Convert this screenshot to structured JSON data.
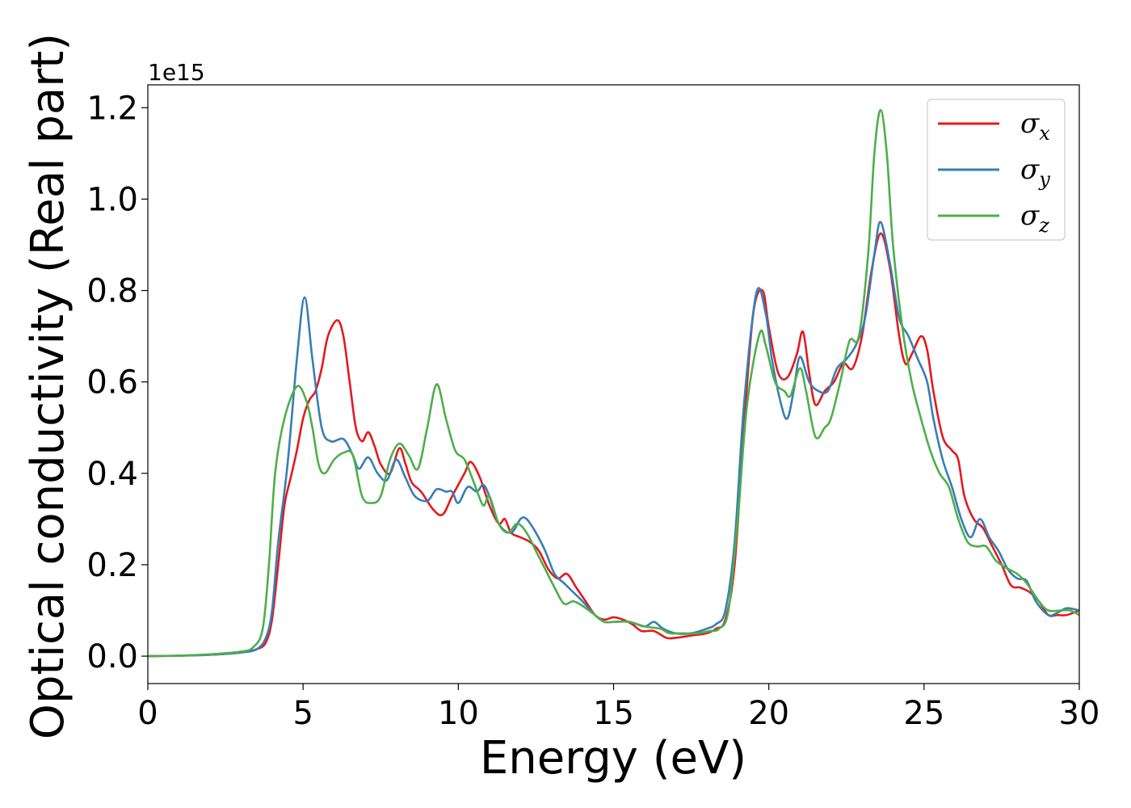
{
  "chart_data": {
    "type": "line",
    "xlabel": "Energy (eV)",
    "ylabel": "Optical conductivity (Real part)",
    "y_offset_text": "1e15",
    "xlim": [
      0,
      30
    ],
    "ylim": [
      -0.06,
      1.25
    ],
    "x_ticks": [
      0,
      5,
      10,
      15,
      20,
      25,
      30
    ],
    "x_tick_labels": [
      "0",
      "5",
      "10",
      "15",
      "20",
      "25",
      "30"
    ],
    "y_ticks": [
      0.0,
      0.2,
      0.4,
      0.6,
      0.8,
      1.0,
      1.2
    ],
    "y_tick_labels": [
      "0.0",
      "0.2",
      "0.4",
      "0.6",
      "0.8",
      "1.0",
      "1.2"
    ],
    "grid": false,
    "legend_position": "top-right",
    "series": [
      {
        "name": "σx",
        "legend_base": "σ",
        "legend_sub": "x",
        "color": "#e41a1c",
        "points": [
          [
            0,
            0
          ],
          [
            1,
            0.001
          ],
          [
            2,
            0.003
          ],
          [
            3,
            0.008
          ],
          [
            3.5,
            0.015
          ],
          [
            3.8,
            0.03
          ],
          [
            4.0,
            0.08
          ],
          [
            4.2,
            0.2
          ],
          [
            4.4,
            0.33
          ],
          [
            4.6,
            0.39
          ],
          [
            4.8,
            0.45
          ],
          [
            5.0,
            0.52
          ],
          [
            5.2,
            0.56
          ],
          [
            5.4,
            0.58
          ],
          [
            5.6,
            0.63
          ],
          [
            5.8,
            0.7
          ],
          [
            6.1,
            0.735
          ],
          [
            6.3,
            0.7
          ],
          [
            6.5,
            0.6
          ],
          [
            6.7,
            0.5
          ],
          [
            6.9,
            0.47
          ],
          [
            7.1,
            0.49
          ],
          [
            7.3,
            0.46
          ],
          [
            7.5,
            0.42
          ],
          [
            7.8,
            0.4
          ],
          [
            8.1,
            0.455
          ],
          [
            8.3,
            0.42
          ],
          [
            8.5,
            0.38
          ],
          [
            8.8,
            0.36
          ],
          [
            9.2,
            0.32
          ],
          [
            9.5,
            0.31
          ],
          [
            9.8,
            0.35
          ],
          [
            10.2,
            0.4
          ],
          [
            10.4,
            0.425
          ],
          [
            10.7,
            0.39
          ],
          [
            11.0,
            0.33
          ],
          [
            11.3,
            0.29
          ],
          [
            11.5,
            0.3
          ],
          [
            11.7,
            0.27
          ],
          [
            12.0,
            0.26
          ],
          [
            12.3,
            0.25
          ],
          [
            12.6,
            0.23
          ],
          [
            12.9,
            0.19
          ],
          [
            13.2,
            0.17
          ],
          [
            13.5,
            0.18
          ],
          [
            13.8,
            0.15
          ],
          [
            14.1,
            0.12
          ],
          [
            14.4,
            0.09
          ],
          [
            14.7,
            0.08
          ],
          [
            15.0,
            0.085
          ],
          [
            15.3,
            0.08
          ],
          [
            15.6,
            0.07
          ],
          [
            15.9,
            0.055
          ],
          [
            16.3,
            0.055
          ],
          [
            16.7,
            0.04
          ],
          [
            17.0,
            0.04
          ],
          [
            17.5,
            0.045
          ],
          [
            18.0,
            0.05
          ],
          [
            18.3,
            0.06
          ],
          [
            18.6,
            0.08
          ],
          [
            18.9,
            0.2
          ],
          [
            19.2,
            0.5
          ],
          [
            19.5,
            0.75
          ],
          [
            19.8,
            0.8
          ],
          [
            20.0,
            0.72
          ],
          [
            20.3,
            0.62
          ],
          [
            20.6,
            0.61
          ],
          [
            20.9,
            0.66
          ],
          [
            21.1,
            0.71
          ],
          [
            21.3,
            0.62
          ],
          [
            21.5,
            0.55
          ],
          [
            21.8,
            0.58
          ],
          [
            22.1,
            0.6
          ],
          [
            22.4,
            0.64
          ],
          [
            22.7,
            0.63
          ],
          [
            23.0,
            0.7
          ],
          [
            23.3,
            0.84
          ],
          [
            23.6,
            0.925
          ],
          [
            23.9,
            0.85
          ],
          [
            24.2,
            0.7
          ],
          [
            24.4,
            0.64
          ],
          [
            24.6,
            0.66
          ],
          [
            24.9,
            0.7
          ],
          [
            25.1,
            0.67
          ],
          [
            25.3,
            0.58
          ],
          [
            25.6,
            0.48
          ],
          [
            25.9,
            0.45
          ],
          [
            26.1,
            0.43
          ],
          [
            26.3,
            0.35
          ],
          [
            26.6,
            0.3
          ],
          [
            26.9,
            0.28
          ],
          [
            27.2,
            0.24
          ],
          [
            27.5,
            0.2
          ],
          [
            27.8,
            0.155
          ],
          [
            28.1,
            0.15
          ],
          [
            28.4,
            0.14
          ],
          [
            28.7,
            0.12
          ],
          [
            29.0,
            0.09
          ],
          [
            29.3,
            0.09
          ],
          [
            29.6,
            0.09
          ],
          [
            30.0,
            0.1
          ]
        ]
      },
      {
        "name": "σy",
        "legend_base": "σ",
        "legend_sub": "y",
        "color": "#377eb8",
        "points": [
          [
            0,
            0
          ],
          [
            1,
            0.001
          ],
          [
            2,
            0.003
          ],
          [
            3,
            0.008
          ],
          [
            3.5,
            0.015
          ],
          [
            3.8,
            0.04
          ],
          [
            4.0,
            0.1
          ],
          [
            4.2,
            0.25
          ],
          [
            4.5,
            0.42
          ],
          [
            4.8,
            0.65
          ],
          [
            5.05,
            0.785
          ],
          [
            5.3,
            0.65
          ],
          [
            5.6,
            0.5
          ],
          [
            5.9,
            0.47
          ],
          [
            6.3,
            0.475
          ],
          [
            6.6,
            0.44
          ],
          [
            6.8,
            0.41
          ],
          [
            7.1,
            0.435
          ],
          [
            7.4,
            0.4
          ],
          [
            7.7,
            0.385
          ],
          [
            8.0,
            0.43
          ],
          [
            8.3,
            0.39
          ],
          [
            8.6,
            0.35
          ],
          [
            9.0,
            0.34
          ],
          [
            9.3,
            0.365
          ],
          [
            9.6,
            0.36
          ],
          [
            9.8,
            0.36
          ],
          [
            10.0,
            0.335
          ],
          [
            10.3,
            0.37
          ],
          [
            10.6,
            0.36
          ],
          [
            10.8,
            0.375
          ],
          [
            11.0,
            0.35
          ],
          [
            11.3,
            0.29
          ],
          [
            11.7,
            0.27
          ],
          [
            12.0,
            0.3
          ],
          [
            12.2,
            0.3
          ],
          [
            12.5,
            0.27
          ],
          [
            12.8,
            0.23
          ],
          [
            13.1,
            0.18
          ],
          [
            13.4,
            0.16
          ],
          [
            13.7,
            0.14
          ],
          [
            14.0,
            0.12
          ],
          [
            14.4,
            0.09
          ],
          [
            14.7,
            0.075
          ],
          [
            15.0,
            0.075
          ],
          [
            15.5,
            0.075
          ],
          [
            16.0,
            0.065
          ],
          [
            16.3,
            0.075
          ],
          [
            16.6,
            0.06
          ],
          [
            17.0,
            0.05
          ],
          [
            17.5,
            0.05
          ],
          [
            18.0,
            0.06
          ],
          [
            18.3,
            0.07
          ],
          [
            18.6,
            0.1
          ],
          [
            18.9,
            0.25
          ],
          [
            19.2,
            0.55
          ],
          [
            19.6,
            0.795
          ],
          [
            19.9,
            0.75
          ],
          [
            20.1,
            0.65
          ],
          [
            20.4,
            0.55
          ],
          [
            20.6,
            0.52
          ],
          [
            20.8,
            0.58
          ],
          [
            21.0,
            0.655
          ],
          [
            21.3,
            0.6
          ],
          [
            21.6,
            0.58
          ],
          [
            21.9,
            0.58
          ],
          [
            22.2,
            0.63
          ],
          [
            22.5,
            0.65
          ],
          [
            22.8,
            0.68
          ],
          [
            23.1,
            0.74
          ],
          [
            23.4,
            0.88
          ],
          [
            23.6,
            0.95
          ],
          [
            23.9,
            0.86
          ],
          [
            24.2,
            0.74
          ],
          [
            24.5,
            0.7
          ],
          [
            24.8,
            0.65
          ],
          [
            25.1,
            0.6
          ],
          [
            25.3,
            0.52
          ],
          [
            25.6,
            0.43
          ],
          [
            25.9,
            0.37
          ],
          [
            26.2,
            0.3
          ],
          [
            26.5,
            0.26
          ],
          [
            26.8,
            0.3
          ],
          [
            27.1,
            0.26
          ],
          [
            27.4,
            0.23
          ],
          [
            27.7,
            0.19
          ],
          [
            28.0,
            0.17
          ],
          [
            28.3,
            0.165
          ],
          [
            28.6,
            0.12
          ],
          [
            29.0,
            0.09
          ],
          [
            29.3,
            0.095
          ],
          [
            29.6,
            0.105
          ],
          [
            30.0,
            0.1
          ]
        ]
      },
      {
        "name": "σz",
        "legend_base": "σ",
        "legend_sub": "z",
        "color": "#4daf4a",
        "points": [
          [
            0,
            0
          ],
          [
            1,
            0.001
          ],
          [
            2,
            0.004
          ],
          [
            3,
            0.01
          ],
          [
            3.4,
            0.02
          ],
          [
            3.7,
            0.06
          ],
          [
            3.9,
            0.2
          ],
          [
            4.1,
            0.4
          ],
          [
            4.4,
            0.52
          ],
          [
            4.8,
            0.59
          ],
          [
            5.1,
            0.56
          ],
          [
            5.3,
            0.5
          ],
          [
            5.5,
            0.42
          ],
          [
            5.7,
            0.4
          ],
          [
            6.0,
            0.43
          ],
          [
            6.3,
            0.445
          ],
          [
            6.6,
            0.44
          ],
          [
            6.9,
            0.35
          ],
          [
            7.2,
            0.335
          ],
          [
            7.5,
            0.35
          ],
          [
            7.8,
            0.43
          ],
          [
            8.1,
            0.465
          ],
          [
            8.4,
            0.44
          ],
          [
            8.7,
            0.41
          ],
          [
            9.0,
            0.5
          ],
          [
            9.3,
            0.595
          ],
          [
            9.6,
            0.52
          ],
          [
            9.9,
            0.45
          ],
          [
            10.2,
            0.43
          ],
          [
            10.5,
            0.38
          ],
          [
            10.8,
            0.33
          ],
          [
            11.0,
            0.35
          ],
          [
            11.3,
            0.29
          ],
          [
            11.6,
            0.27
          ],
          [
            11.9,
            0.29
          ],
          [
            12.2,
            0.27
          ],
          [
            12.5,
            0.23
          ],
          [
            12.8,
            0.19
          ],
          [
            13.1,
            0.15
          ],
          [
            13.4,
            0.115
          ],
          [
            13.7,
            0.12
          ],
          [
            14.0,
            0.11
          ],
          [
            14.4,
            0.09
          ],
          [
            14.7,
            0.075
          ],
          [
            15.0,
            0.075
          ],
          [
            15.5,
            0.075
          ],
          [
            16.0,
            0.065
          ],
          [
            16.5,
            0.06
          ],
          [
            16.8,
            0.05
          ],
          [
            17.2,
            0.05
          ],
          [
            17.7,
            0.05
          ],
          [
            18.1,
            0.055
          ],
          [
            18.4,
            0.06
          ],
          [
            18.7,
            0.1
          ],
          [
            19.0,
            0.3
          ],
          [
            19.3,
            0.55
          ],
          [
            19.7,
            0.705
          ],
          [
            19.9,
            0.68
          ],
          [
            20.2,
            0.6
          ],
          [
            20.5,
            0.58
          ],
          [
            20.7,
            0.57
          ],
          [
            21.0,
            0.63
          ],
          [
            21.2,
            0.58
          ],
          [
            21.5,
            0.48
          ],
          [
            21.8,
            0.5
          ],
          [
            22.0,
            0.52
          ],
          [
            22.3,
            0.6
          ],
          [
            22.6,
            0.69
          ],
          [
            22.9,
            0.7
          ],
          [
            23.2,
            0.88
          ],
          [
            23.4,
            1.1
          ],
          [
            23.6,
            1.195
          ],
          [
            23.8,
            1.1
          ],
          [
            24.0,
            0.9
          ],
          [
            24.3,
            0.72
          ],
          [
            24.6,
            0.6
          ],
          [
            24.9,
            0.52
          ],
          [
            25.2,
            0.45
          ],
          [
            25.5,
            0.4
          ],
          [
            25.8,
            0.37
          ],
          [
            26.1,
            0.3
          ],
          [
            26.4,
            0.25
          ],
          [
            26.7,
            0.24
          ],
          [
            27.0,
            0.24
          ],
          [
            27.3,
            0.21
          ],
          [
            27.6,
            0.195
          ],
          [
            28.0,
            0.18
          ],
          [
            28.3,
            0.16
          ],
          [
            28.7,
            0.12
          ],
          [
            29.0,
            0.1
          ],
          [
            29.4,
            0.1
          ],
          [
            29.7,
            0.1
          ],
          [
            30.0,
            0.09
          ]
        ]
      }
    ]
  }
}
